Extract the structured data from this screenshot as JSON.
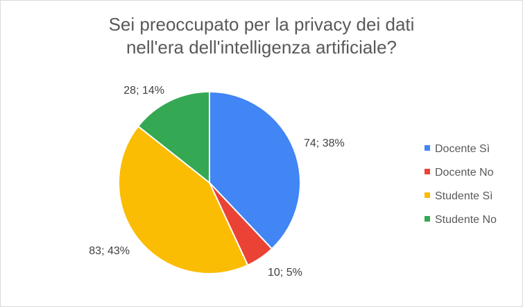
{
  "chart_data": {
    "type": "pie",
    "title": {
      "line1": "Sei preoccupato per la privacy dei dati",
      "line2": "nell'era dell'intelligenza artificiale?"
    },
    "slices": [
      {
        "name": "Docente Sì",
        "value": 74,
        "percent": "38%",
        "label": "74; 38%",
        "color": "#4285f4"
      },
      {
        "name": "Docente No",
        "value": 10,
        "percent": "5%",
        "label": "10; 5%",
        "color": "#ea4335"
      },
      {
        "name": "Studente Sì",
        "value": 83,
        "percent": "43%",
        "label": "83; 43%",
        "color": "#fbbc04"
      },
      {
        "name": "Studente No",
        "value": 28,
        "percent": "14%",
        "label": "28; 14%",
        "color": "#34a853"
      }
    ],
    "legend_position": "right"
  }
}
